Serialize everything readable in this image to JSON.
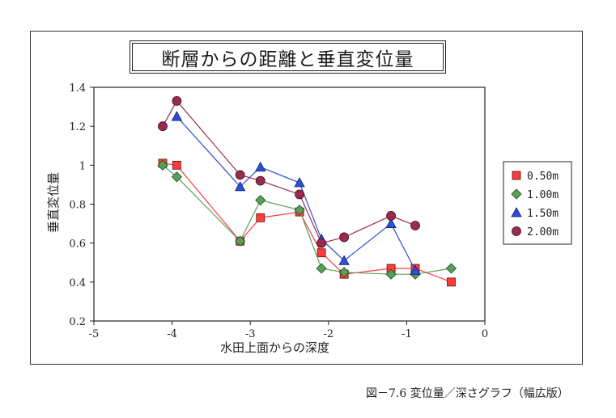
{
  "caption": "図－7.6 変位量／深さグラフ（幅広版）",
  "chart_data": {
    "type": "line",
    "title": "断層からの距離と垂直変位量",
    "xlabel": "水田上面からの深度",
    "ylabel": "垂直変位量",
    "xlim": [
      -5,
      0
    ],
    "ylim": [
      0.2,
      1.4
    ],
    "xticks": [
      "-5",
      "-4",
      "-3",
      "-2",
      "-1",
      "0"
    ],
    "yticks": [
      "0.2",
      "0.4",
      "0.6",
      "0.8",
      "1",
      "1.2",
      "1.4"
    ],
    "grid": false,
    "legend_position": "right",
    "series": [
      {
        "name": "0.50m",
        "color": "#ff3b3b",
        "marker": "square",
        "points": [
          [
            -4.12,
            1.01
          ],
          [
            -3.94,
            1.0
          ],
          [
            -3.13,
            0.61
          ],
          [
            -2.87,
            0.73
          ],
          [
            -2.37,
            0.76
          ],
          [
            -2.09,
            0.55
          ],
          [
            -1.8,
            0.44
          ],
          [
            -1.2,
            0.47
          ],
          [
            -0.89,
            0.47
          ],
          [
            -0.43,
            0.4
          ]
        ]
      },
      {
        "name": "1.00m",
        "color": "#5aa05a",
        "marker": "diamond",
        "points": [
          [
            -4.12,
            1.0
          ],
          [
            -3.94,
            0.94
          ],
          [
            -3.13,
            0.61
          ],
          [
            -2.87,
            0.82
          ],
          [
            -2.37,
            0.77
          ],
          [
            -2.09,
            0.47
          ],
          [
            -1.8,
            0.45
          ],
          [
            -1.2,
            0.44
          ],
          [
            -0.89,
            0.44
          ],
          [
            -0.43,
            0.47
          ]
        ]
      },
      {
        "name": "1.50m",
        "color": "#2b4fd6",
        "marker": "triangle",
        "points": [
          [
            -3.94,
            1.25
          ],
          [
            -3.13,
            0.89
          ],
          [
            -2.87,
            0.99
          ],
          [
            -2.37,
            0.91
          ],
          [
            -2.09,
            0.62
          ],
          [
            -1.8,
            0.51
          ],
          [
            -1.2,
            0.7
          ],
          [
            -0.89,
            0.46
          ]
        ]
      },
      {
        "name": "2.00m",
        "color": "#9a2a52",
        "marker": "circle",
        "points": [
          [
            -4.12,
            1.2
          ],
          [
            -3.94,
            1.33
          ],
          [
            -3.13,
            0.95
          ],
          [
            -2.87,
            0.92
          ],
          [
            -2.37,
            0.85
          ],
          [
            -2.09,
            0.6
          ],
          [
            -1.8,
            0.63
          ],
          [
            -1.2,
            0.74
          ],
          [
            -0.89,
            0.69
          ]
        ]
      }
    ]
  }
}
